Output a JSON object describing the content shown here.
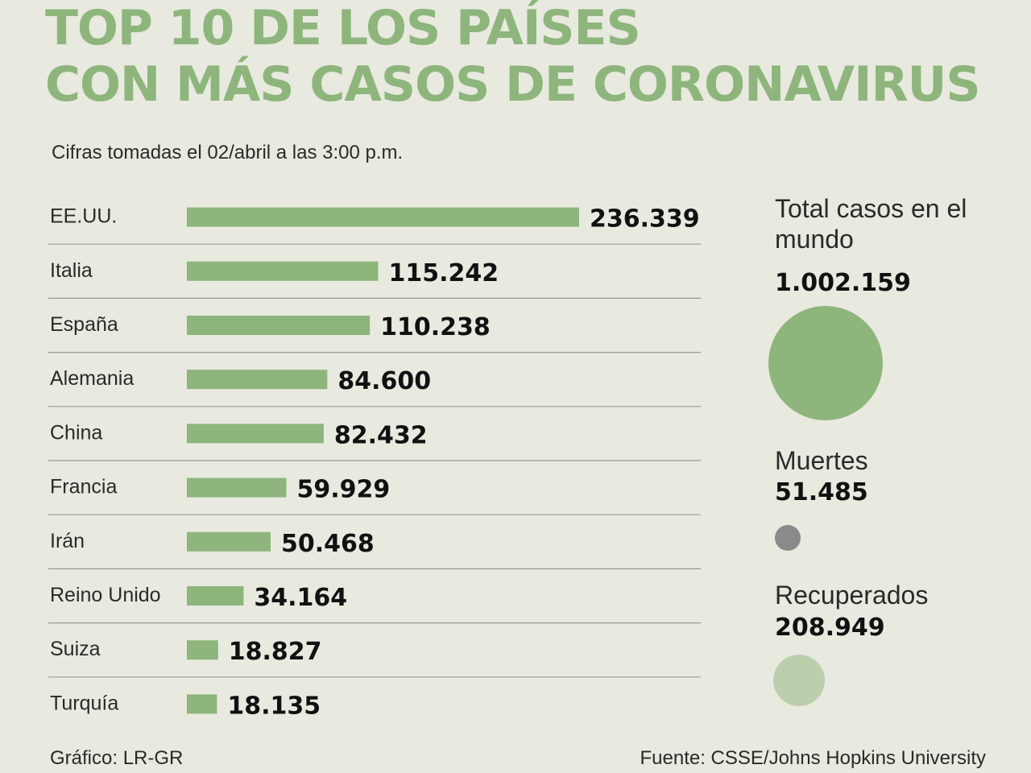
{
  "title": {
    "line1": "TOP 10 DE LOS PAÍSES",
    "line2": "CON MÁS CASOS DE CORONAVIRUS"
  },
  "subtitle": "Cifras tomadas el 02/abril a las 3:00 p.m.",
  "chart_data": {
    "type": "bar",
    "orientation": "horizontal",
    "categories": [
      "EE.UU.",
      "Italia",
      "España",
      "Alemania",
      "China",
      "Francia",
      "Irán",
      "Reino Unido",
      "Suiza",
      "Turquía"
    ],
    "values": [
      236339,
      115242,
      110238,
      84600,
      82432,
      59929,
      50468,
      34164,
      18827,
      18135
    ],
    "value_labels": [
      "236.339",
      "115.242",
      "110.238",
      "84.600",
      "82.432",
      "59.929",
      "50.468",
      "34.164",
      "18.827",
      "18.135"
    ],
    "xlim": [
      0,
      236339
    ],
    "bar_color": "#8db57c"
  },
  "summary": {
    "total": {
      "label": "Total casos en el mundo",
      "value": "1.002.159",
      "amount": 1002159,
      "color": "#8db57c"
    },
    "deaths": {
      "label": "Muertes",
      "value": "51.485",
      "amount": 51485,
      "color": "#8a8a8a"
    },
    "recovered": {
      "label": "Recuperados",
      "value": "208.949",
      "amount": 208949,
      "color": "#bccfad"
    }
  },
  "footer": {
    "credit": "Gráfico: LR-GR",
    "source": "Fuente: CSSE/Johns Hopkins University"
  }
}
